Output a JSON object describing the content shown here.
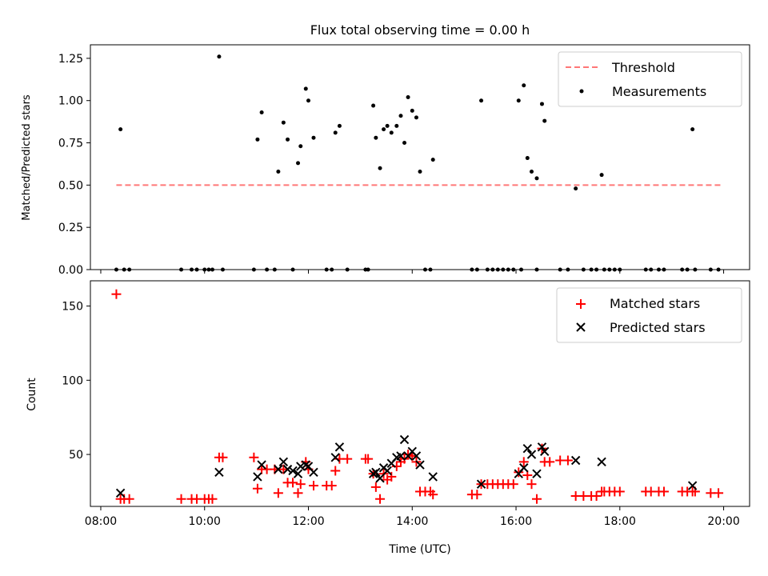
{
  "chart_data": [
    {
      "type": "scatter",
      "title": "Flux total observing time = 0.00 h",
      "ylabel": "Matched/Predicted stars",
      "xlabel": "",
      "xlim": [
        7.8,
        20.5
      ],
      "ylim": [
        0,
        1.33
      ],
      "xticks": [
        "08:00",
        "10:00",
        "12:00",
        "14:00",
        "16:00",
        "18:00",
        "20:00"
      ],
      "yticks": [
        "0.00",
        "0.25",
        "0.50",
        "0.75",
        "1.00",
        "1.25"
      ],
      "legend_position": "top-right",
      "threshold": {
        "name": "Threshold",
        "value": 0.5,
        "x_range": [
          8.3,
          19.95
        ],
        "color": "#ff7777",
        "style": "dashed"
      },
      "measurements": {
        "name": "Measurements",
        "color": "#000000",
        "points": [
          [
            8.3,
            0
          ],
          [
            8.38,
            0.83
          ],
          [
            8.45,
            0
          ],
          [
            8.55,
            0
          ],
          [
            9.55,
            0
          ],
          [
            9.75,
            0
          ],
          [
            9.85,
            0
          ],
          [
            10.0,
            0
          ],
          [
            10.08,
            0
          ],
          [
            10.15,
            0
          ],
          [
            10.28,
            1.26
          ],
          [
            10.35,
            0
          ],
          [
            10.95,
            0
          ],
          [
            11.02,
            0.77
          ],
          [
            11.1,
            0.93
          ],
          [
            11.2,
            0
          ],
          [
            11.35,
            0
          ],
          [
            11.42,
            0.58
          ],
          [
            11.52,
            0.87
          ],
          [
            11.6,
            0.77
          ],
          [
            11.7,
            0
          ],
          [
            11.8,
            0.63
          ],
          [
            11.85,
            0.73
          ],
          [
            11.95,
            1.07
          ],
          [
            12.0,
            1.0
          ],
          [
            12.1,
            0.78
          ],
          [
            12.35,
            0
          ],
          [
            12.45,
            0
          ],
          [
            12.52,
            0.81
          ],
          [
            12.6,
            0.85
          ],
          [
            12.75,
            0
          ],
          [
            13.1,
            0
          ],
          [
            13.15,
            0
          ],
          [
            13.25,
            0.97
          ],
          [
            13.3,
            0.78
          ],
          [
            13.38,
            0.6
          ],
          [
            13.45,
            0.83
          ],
          [
            13.52,
            0.85
          ],
          [
            13.6,
            0.81
          ],
          [
            13.7,
            0.85
          ],
          [
            13.78,
            0.91
          ],
          [
            13.85,
            0.75
          ],
          [
            13.92,
            1.02
          ],
          [
            14.0,
            0.94
          ],
          [
            14.08,
            0.9
          ],
          [
            14.15,
            0.58
          ],
          [
            14.25,
            0
          ],
          [
            14.4,
            0.65
          ],
          [
            14.35,
            0
          ],
          [
            15.15,
            0
          ],
          [
            15.25,
            0
          ],
          [
            15.33,
            1.0
          ],
          [
            15.45,
            0
          ],
          [
            15.55,
            0
          ],
          [
            15.65,
            0
          ],
          [
            15.75,
            0
          ],
          [
            15.85,
            0
          ],
          [
            15.95,
            0
          ],
          [
            16.05,
            1.0
          ],
          [
            16.15,
            1.09
          ],
          [
            16.22,
            0.66
          ],
          [
            16.3,
            0.58
          ],
          [
            16.4,
            0.54
          ],
          [
            16.5,
            0.98
          ],
          [
            16.55,
            0.88
          ],
          [
            16.4,
            0
          ],
          [
            16.1,
            0
          ],
          [
            16.85,
            0
          ],
          [
            17.0,
            0
          ],
          [
            17.15,
            0.48
          ],
          [
            17.3,
            0
          ],
          [
            17.45,
            0
          ],
          [
            17.55,
            0
          ],
          [
            17.65,
            0.56
          ],
          [
            17.7,
            0
          ],
          [
            17.8,
            0
          ],
          [
            17.9,
            0
          ],
          [
            18.0,
            0
          ],
          [
            18.5,
            0
          ],
          [
            18.6,
            0
          ],
          [
            18.75,
            0
          ],
          [
            18.85,
            0
          ],
          [
            19.2,
            0
          ],
          [
            19.3,
            0
          ],
          [
            19.4,
            0.83
          ],
          [
            19.45,
            0
          ],
          [
            19.75,
            0
          ],
          [
            19.9,
            0
          ]
        ]
      }
    },
    {
      "type": "scatter",
      "title": "",
      "ylabel": "Count",
      "xlabel": "Time (UTC)",
      "xlim": [
        7.8,
        20.5
      ],
      "ylim": [
        15,
        167
      ],
      "xticks": [
        "08:00",
        "10:00",
        "12:00",
        "14:00",
        "16:00",
        "18:00",
        "20:00"
      ],
      "yticks": [
        "50",
        "100",
        "150"
      ],
      "legend_position": "top-right",
      "series": [
        {
          "name": "Matched stars",
          "color": "#ff0000",
          "marker": "plus",
          "points": [
            [
              8.3,
              158
            ],
            [
              8.38,
              20
            ],
            [
              8.45,
              20
            ],
            [
              8.55,
              20
            ],
            [
              9.55,
              20
            ],
            [
              9.75,
              20
            ],
            [
              9.85,
              20
            ],
            [
              10.0,
              20
            ],
            [
              10.08,
              20
            ],
            [
              10.15,
              20
            ],
            [
              10.28,
              48
            ],
            [
              10.35,
              48
            ],
            [
              10.95,
              48
            ],
            [
              11.02,
              27
            ],
            [
              11.1,
              40
            ],
            [
              11.2,
              40
            ],
            [
              11.35,
              40
            ],
            [
              11.42,
              24
            ],
            [
              11.52,
              40
            ],
            [
              11.6,
              31
            ],
            [
              11.7,
              31
            ],
            [
              11.8,
              24
            ],
            [
              11.85,
              30
            ],
            [
              11.95,
              45
            ],
            [
              12.0,
              40
            ],
            [
              12.1,
              29
            ],
            [
              12.35,
              29
            ],
            [
              12.45,
              29
            ],
            [
              12.52,
              39
            ],
            [
              12.6,
              47
            ],
            [
              12.75,
              47
            ],
            [
              13.1,
              47
            ],
            [
              13.15,
              47
            ],
            [
              13.25,
              37
            ],
            [
              13.3,
              28
            ],
            [
              13.38,
              20
            ],
            [
              13.45,
              37
            ],
            [
              13.52,
              33
            ],
            [
              13.6,
              35
            ],
            [
              13.7,
              42
            ],
            [
              13.78,
              45
            ],
            [
              13.85,
              47
            ],
            [
              13.92,
              50
            ],
            [
              14.0,
              49
            ],
            [
              14.08,
              45
            ],
            [
              14.15,
              25
            ],
            [
              14.25,
              25
            ],
            [
              14.35,
              25
            ],
            [
              14.4,
              23
            ],
            [
              15.15,
              23
            ],
            [
              15.25,
              23
            ],
            [
              15.33,
              30
            ],
            [
              15.45,
              30
            ],
            [
              15.55,
              30
            ],
            [
              15.65,
              30
            ],
            [
              15.75,
              30
            ],
            [
              15.85,
              30
            ],
            [
              15.95,
              30
            ],
            [
              16.05,
              38
            ],
            [
              16.15,
              45
            ],
            [
              16.22,
              36
            ],
            [
              16.3,
              30
            ],
            [
              16.4,
              20
            ],
            [
              16.5,
              54
            ],
            [
              16.55,
              45
            ],
            [
              16.65,
              45
            ],
            [
              16.85,
              46
            ],
            [
              17.0,
              46
            ],
            [
              17.15,
              22
            ],
            [
              17.3,
              22
            ],
            [
              17.45,
              22
            ],
            [
              17.55,
              22
            ],
            [
              17.65,
              25
            ],
            [
              17.7,
              25
            ],
            [
              17.8,
              25
            ],
            [
              17.9,
              25
            ],
            [
              18.0,
              25
            ],
            [
              18.5,
              25
            ],
            [
              18.6,
              25
            ],
            [
              18.75,
              25
            ],
            [
              18.85,
              25
            ],
            [
              19.2,
              25
            ],
            [
              19.3,
              25
            ],
            [
              19.4,
              25
            ],
            [
              19.45,
              25
            ],
            [
              19.75,
              24
            ],
            [
              19.9,
              24
            ]
          ]
        },
        {
          "name": "Predicted stars",
          "color": "#000000",
          "marker": "x",
          "points": [
            [
              8.38,
              24
            ],
            [
              10.28,
              38
            ],
            [
              11.02,
              35
            ],
            [
              11.1,
              43
            ],
            [
              11.42,
              40
            ],
            [
              11.52,
              45
            ],
            [
              11.6,
              40
            ],
            [
              11.7,
              39
            ],
            [
              11.8,
              37
            ],
            [
              11.85,
              42
            ],
            [
              11.95,
              43
            ],
            [
              12.0,
              42
            ],
            [
              12.1,
              38
            ],
            [
              12.52,
              48
            ],
            [
              12.6,
              55
            ],
            [
              13.25,
              37
            ],
            [
              13.3,
              38
            ],
            [
              13.38,
              34
            ],
            [
              13.45,
              41
            ],
            [
              13.52,
              39
            ],
            [
              13.6,
              44
            ],
            [
              13.7,
              48
            ],
            [
              13.78,
              49
            ],
            [
              13.85,
              60
            ],
            [
              13.92,
              49
            ],
            [
              14.0,
              52
            ],
            [
              14.08,
              49
            ],
            [
              14.15,
              43
            ],
            [
              14.4,
              35
            ],
            [
              15.33,
              30
            ],
            [
              16.05,
              37
            ],
            [
              16.15,
              41
            ],
            [
              16.22,
              54
            ],
            [
              16.3,
              50
            ],
            [
              16.4,
              37
            ],
            [
              16.5,
              55
            ],
            [
              16.55,
              52
            ],
            [
              17.15,
              46
            ],
            [
              17.65,
              45
            ],
            [
              19.4,
              29
            ]
          ]
        }
      ]
    }
  ]
}
